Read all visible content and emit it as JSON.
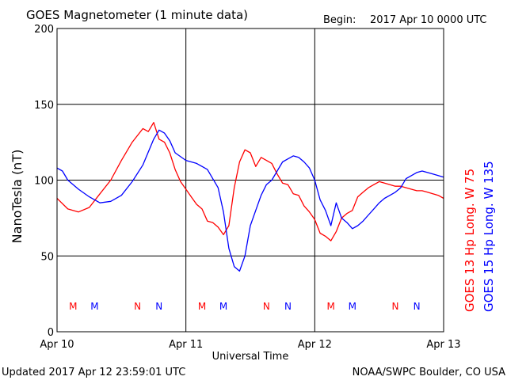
{
  "header": {
    "title": "GOES Magnetometer (1 minute data)",
    "begin_label": "Begin:",
    "begin_value": "2017 Apr 10 0000 UTC"
  },
  "footer": {
    "updated": "Updated 2017 Apr 12 23:59:01 UTC",
    "credit": "NOAA/SWPC Boulder, CO USA"
  },
  "colors": {
    "goes13": "#ff0000",
    "goes15": "#0000ff",
    "grid": "#000000"
  },
  "chart_data": {
    "type": "line",
    "ylabel": "NanoTesla (nT)",
    "xlabel": "Universal Time",
    "ylim": [
      0,
      200
    ],
    "xlim": [
      0,
      72
    ],
    "x_unit": "hours since 2017 Apr 10 0000 UTC",
    "y_ticks": [
      0,
      50,
      100,
      150,
      200
    ],
    "x_ticks": [
      {
        "x": 0,
        "label": "Apr 10"
      },
      {
        "x": 24,
        "label": "Apr 11"
      },
      {
        "x": 48,
        "label": "Apr 12"
      },
      {
        "x": 72,
        "label": "Apr 13"
      }
    ],
    "grid": true,
    "legend_placement": "right (vertical)",
    "series": [
      {
        "name": "GOES 13 Hp  Long. W 75",
        "color": "#ff0000",
        "x": [
          0,
          2,
          4,
          6,
          8,
          10,
          12,
          14,
          16,
          17,
          18,
          19,
          20,
          21,
          22,
          23,
          24,
          25,
          26,
          27,
          28,
          29,
          30,
          31,
          32,
          33,
          34,
          35,
          36,
          37,
          38,
          39,
          40,
          41,
          42,
          43,
          44,
          45,
          46,
          47,
          48,
          49,
          50,
          51,
          52,
          53,
          54,
          55,
          56,
          57,
          58,
          59,
          60,
          61,
          62,
          63,
          64,
          65,
          66,
          67,
          68,
          69,
          70,
          71,
          72
        ],
        "y": [
          88,
          81,
          79,
          82,
          91,
          100,
          113,
          125,
          134,
          132,
          138,
          127,
          125,
          118,
          107,
          99,
          94,
          89,
          84,
          81,
          73,
          72,
          69,
          64,
          70,
          95,
          112,
          120,
          118,
          109,
          115,
          113,
          111,
          104,
          98,
          97,
          91,
          90,
          83,
          79,
          74,
          65,
          63,
          60,
          66,
          75,
          78,
          80,
          89,
          92,
          95,
          97,
          99,
          98,
          97,
          96,
          96,
          95,
          94,
          93,
          93,
          92,
          91,
          90,
          88
        ]
      },
      {
        "name": "GOES 15 Hp  Long. W 135",
        "color": "#0000ff",
        "x": [
          0,
          1,
          2,
          4,
          6,
          8,
          10,
          12,
          14,
          16,
          18,
          19,
          20,
          21,
          22,
          24,
          26,
          28,
          30,
          31,
          32,
          33,
          34,
          35,
          36,
          37,
          38,
          39,
          40,
          41,
          42,
          43,
          44,
          45,
          46,
          47,
          48,
          49,
          50,
          51,
          52,
          53,
          54,
          55,
          56,
          57,
          58,
          59,
          60,
          61,
          62,
          63,
          64,
          65,
          66,
          67,
          68,
          69,
          70,
          71,
          72
        ],
        "y": [
          108,
          106,
          100,
          94,
          89,
          85,
          86,
          90,
          99,
          110,
          127,
          133,
          131,
          126,
          118,
          113,
          111,
          107,
          95,
          79,
          55,
          43,
          40,
          50,
          70,
          80,
          90,
          97,
          100,
          106,
          112,
          114,
          116,
          115,
          112,
          108,
          100,
          87,
          80,
          70,
          85,
          75,
          72,
          68,
          70,
          73,
          77,
          81,
          85,
          88,
          90,
          92,
          95,
          101,
          103,
          105,
          106,
          105,
          104,
          103,
          102
        ]
      }
    ],
    "annotations": [
      {
        "x": 3,
        "text": "M",
        "color": "#ff0000"
      },
      {
        "x": 7,
        "text": "M",
        "color": "#0000ff"
      },
      {
        "x": 15,
        "text": "N",
        "color": "#ff0000"
      },
      {
        "x": 19,
        "text": "N",
        "color": "#0000ff"
      },
      {
        "x": 27,
        "text": "M",
        "color": "#ff0000"
      },
      {
        "x": 31,
        "text": "M",
        "color": "#0000ff"
      },
      {
        "x": 39,
        "text": "N",
        "color": "#ff0000"
      },
      {
        "x": 43,
        "text": "N",
        "color": "#0000ff"
      },
      {
        "x": 51,
        "text": "M",
        "color": "#ff0000"
      },
      {
        "x": 55,
        "text": "M",
        "color": "#0000ff"
      },
      {
        "x": 63,
        "text": "N",
        "color": "#ff0000"
      },
      {
        "x": 67,
        "text": "N",
        "color": "#0000ff"
      }
    ]
  }
}
